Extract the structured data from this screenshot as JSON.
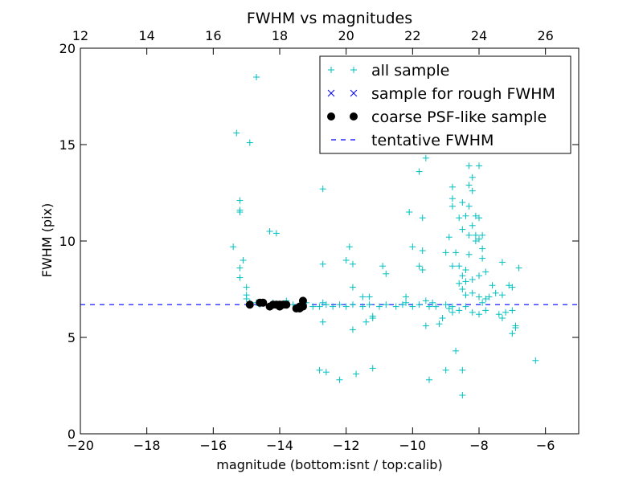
{
  "chart_data": {
    "type": "scatter",
    "title": "FWHM vs magnitudes",
    "xlabel": "magnitude (bottom:isnt / top:calib)",
    "ylabel": "FWHM (pix)",
    "xlim": [
      -20,
      -5
    ],
    "ylim": [
      0,
      20
    ],
    "xticks": [
      -20,
      -18,
      -16,
      -14,
      -12,
      -10,
      -8,
      -6
    ],
    "xtick_labels": [
      "−20",
      "−18",
      "−16",
      "−14",
      "−12",
      "−10",
      "−8",
      "−6"
    ],
    "yticks": [
      0,
      5,
      10,
      15,
      20
    ],
    "ytick_labels": [
      "0",
      "5",
      "10",
      "15",
      "20"
    ],
    "top_axis": {
      "label": "calib",
      "offset_from_bottom": 32,
      "ticks": [
        12,
        14,
        16,
        18,
        20,
        22,
        24,
        26
      ],
      "tick_labels": [
        "12",
        "14",
        "16",
        "18",
        "20",
        "22",
        "24",
        "26"
      ]
    },
    "grid": false,
    "legend_position": "upper-right",
    "tentative_fwhm": 6.7,
    "series": [
      {
        "name": "all sample",
        "marker": "+",
        "color": "#00bfbf",
        "points": [
          [
            -15.3,
            15.6
          ],
          [
            -14.9,
            15.1
          ],
          [
            -14.7,
            18.5
          ],
          [
            -15.2,
            12.1
          ],
          [
            -15.2,
            11.6
          ],
          [
            -15.2,
            11.5
          ],
          [
            -14.3,
            10.5
          ],
          [
            -14.1,
            10.4
          ],
          [
            -15.4,
            9.7
          ],
          [
            -15.1,
            9.0
          ],
          [
            -15.2,
            8.6
          ],
          [
            -15.2,
            8.1
          ],
          [
            -15.0,
            7.6
          ],
          [
            -15.0,
            7.2
          ],
          [
            -15.0,
            7.0
          ],
          [
            -14.9,
            6.8
          ],
          [
            -14.7,
            6.8
          ],
          [
            -14.6,
            6.7
          ],
          [
            -14.2,
            6.8
          ],
          [
            -13.8,
            6.9
          ],
          [
            -13.6,
            6.7
          ],
          [
            -13.4,
            6.6
          ],
          [
            -13.3,
            6.7
          ],
          [
            -13.2,
            6.8
          ],
          [
            -13.0,
            6.6
          ],
          [
            -12.8,
            6.6
          ],
          [
            -12.7,
            6.8
          ],
          [
            -12.6,
            6.7
          ],
          [
            -12.4,
            6.6
          ],
          [
            -12.2,
            6.7
          ],
          [
            -12.0,
            6.6
          ],
          [
            -11.8,
            6.7
          ],
          [
            -11.5,
            6.6
          ],
          [
            -11.3,
            6.7
          ],
          [
            -11.0,
            6.6
          ],
          [
            -10.8,
            6.7
          ],
          [
            -10.5,
            6.6
          ],
          [
            -10.3,
            6.7
          ],
          [
            -10.0,
            6.6
          ],
          [
            -9.8,
            6.7
          ],
          [
            -9.5,
            6.6
          ],
          [
            -9.3,
            6.6
          ],
          [
            -9.0,
            6.7
          ],
          [
            -8.8,
            6.6
          ],
          [
            -12.7,
            12.7
          ],
          [
            -12.0,
            9.0
          ],
          [
            -11.9,
            9.7
          ],
          [
            -11.8,
            8.8
          ],
          [
            -12.7,
            8.8
          ],
          [
            -11.8,
            7.6
          ],
          [
            -11.5,
            7.1
          ],
          [
            -10.9,
            8.7
          ],
          [
            -10.8,
            8.3
          ],
          [
            -11.3,
            7.1
          ],
          [
            -12.7,
            5.8
          ],
          [
            -11.8,
            5.4
          ],
          [
            -11.4,
            5.8
          ],
          [
            -11.2,
            6.1
          ],
          [
            -11.2,
            6.0
          ],
          [
            -12.8,
            3.3
          ],
          [
            -12.6,
            3.2
          ],
          [
            -12.2,
            2.8
          ],
          [
            -11.7,
            3.1
          ],
          [
            -11.2,
            3.4
          ],
          [
            -9.8,
            13.6
          ],
          [
            -9.6,
            14.3
          ],
          [
            -10.1,
            11.5
          ],
          [
            -9.7,
            11.2
          ],
          [
            -10.0,
            9.7
          ],
          [
            -9.7,
            9.5
          ],
          [
            -9.8,
            8.7
          ],
          [
            -9.7,
            8.5
          ],
          [
            -10.2,
            7.1
          ],
          [
            -10.2,
            6.8
          ],
          [
            -9.6,
            6.9
          ],
          [
            -9.4,
            6.8
          ],
          [
            -9.6,
            5.6
          ],
          [
            -9.2,
            5.7
          ],
          [
            -9.1,
            6.0
          ],
          [
            -9.5,
            2.8
          ],
          [
            -9.0,
            3.3
          ],
          [
            -8.7,
            4.3
          ],
          [
            -8.5,
            2.0
          ],
          [
            -8.5,
            3.3
          ],
          [
            -8.5,
            15.2
          ],
          [
            -8.3,
            13.9
          ],
          [
            -8.0,
            13.9
          ],
          [
            -8.2,
            13.3
          ],
          [
            -8.3,
            12.9
          ],
          [
            -8.8,
            12.8
          ],
          [
            -8.2,
            12.6
          ],
          [
            -8.5,
            12.0
          ],
          [
            -8.3,
            11.8
          ],
          [
            -8.8,
            12.2
          ],
          [
            -8.8,
            11.8
          ],
          [
            -8.4,
            11.3
          ],
          [
            -8.1,
            11.3
          ],
          [
            -8.0,
            11.2
          ],
          [
            -8.6,
            11.2
          ],
          [
            -8.2,
            10.8
          ],
          [
            -8.5,
            10.6
          ],
          [
            -8.3,
            10.3
          ],
          [
            -8.1,
            10.3
          ],
          [
            -7.9,
            10.3
          ],
          [
            -7.9,
            9.6
          ],
          [
            -7.9,
            9.1
          ],
          [
            -8.9,
            10.2
          ],
          [
            -8.7,
            9.4
          ],
          [
            -9.0,
            9.4
          ],
          [
            -8.3,
            9.3
          ],
          [
            -8.1,
            10.0
          ],
          [
            -8.0,
            10.1
          ],
          [
            -8.4,
            8.5
          ],
          [
            -8.6,
            8.7
          ],
          [
            -8.8,
            8.7
          ],
          [
            -8.5,
            8.2
          ],
          [
            -8.4,
            7.9
          ],
          [
            -8.2,
            8.0
          ],
          [
            -8.0,
            8.2
          ],
          [
            -7.8,
            8.4
          ],
          [
            -8.6,
            7.8
          ],
          [
            -8.5,
            7.5
          ],
          [
            -8.4,
            7.2
          ],
          [
            -8.2,
            7.3
          ],
          [
            -8.0,
            7.1
          ],
          [
            -7.8,
            7.0
          ],
          [
            -7.9,
            6.8
          ],
          [
            -7.7,
            7.1
          ],
          [
            -7.5,
            7.3
          ],
          [
            -7.3,
            7.2
          ],
          [
            -7.1,
            7.7
          ],
          [
            -7.0,
            7.6
          ],
          [
            -7.6,
            7.7
          ],
          [
            -7.3,
            8.9
          ],
          [
            -6.8,
            8.6
          ],
          [
            -8.9,
            6.5
          ],
          [
            -8.8,
            6.3
          ],
          [
            -8.6,
            6.4
          ],
          [
            -8.4,
            6.6
          ],
          [
            -8.2,
            6.3
          ],
          [
            -8.0,
            6.2
          ],
          [
            -7.8,
            6.4
          ],
          [
            -7.4,
            6.2
          ],
          [
            -7.3,
            6.0
          ],
          [
            -7.2,
            6.3
          ],
          [
            -7.0,
            6.4
          ],
          [
            -6.9,
            5.6
          ],
          [
            -6.9,
            5.5
          ],
          [
            -7.0,
            5.2
          ],
          [
            -6.3,
            3.8
          ]
        ]
      },
      {
        "name": "sample for rough FWHM",
        "marker": "x",
        "color": "#0000ff",
        "points": []
      },
      {
        "name": "coarse PSF-like sample",
        "marker": "o",
        "color": "#000000",
        "points": [
          [
            -14.9,
            6.7
          ],
          [
            -14.6,
            6.8
          ],
          [
            -14.5,
            6.8
          ],
          [
            -14.3,
            6.6
          ],
          [
            -14.2,
            6.7
          ],
          [
            -14.1,
            6.7
          ],
          [
            -14.0,
            6.7
          ],
          [
            -14.0,
            6.6
          ],
          [
            -13.9,
            6.7
          ],
          [
            -13.8,
            6.7
          ],
          [
            -13.5,
            6.5
          ],
          [
            -13.4,
            6.5
          ],
          [
            -13.4,
            6.6
          ],
          [
            -13.3,
            6.9
          ],
          [
            -13.3,
            6.6
          ]
        ]
      },
      {
        "name": "tentative FWHM",
        "marker": "--",
        "color": "#0000ff",
        "points": []
      }
    ]
  }
}
